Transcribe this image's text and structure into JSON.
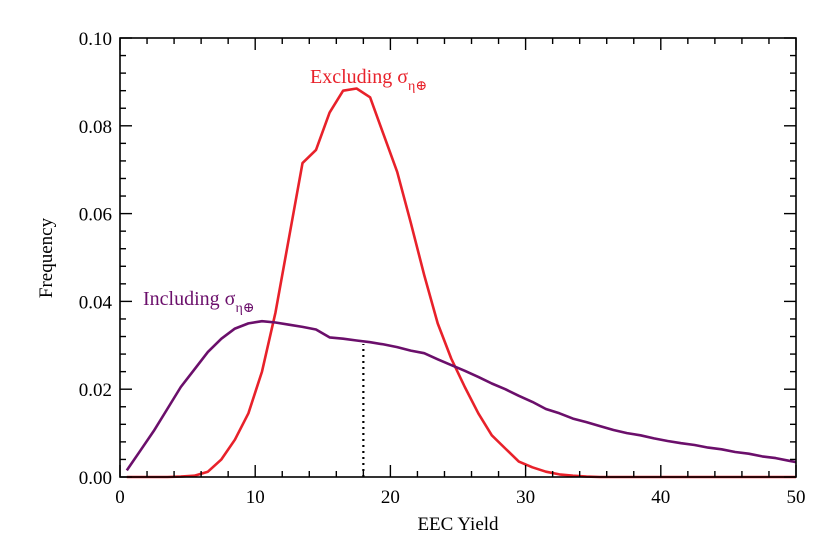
{
  "chart_data": {
    "type": "line",
    "xlabel": "EEC Yield",
    "ylabel": "Frequency",
    "xlim": [
      0,
      50
    ],
    "ylim": [
      0,
      0.1
    ],
    "x_ticks": [
      "0",
      "10",
      "20",
      "30",
      "40",
      "50"
    ],
    "y_ticks": [
      "0.00",
      "0.02",
      "0.04",
      "0.06",
      "0.08",
      "0.10"
    ],
    "grid": false,
    "colors": {
      "excluding": "#e8212a",
      "including": "#6b0f6b",
      "median_marker": "#000000"
    },
    "series": [
      {
        "name": "Excluding σ",
        "name_subscript": "η⊕",
        "color": "#e8212a",
        "x": [
          0.5,
          1.5,
          2.5,
          3.5,
          4.5,
          5.5,
          6.5,
          7.5,
          8.5,
          9.5,
          10.5,
          11.5,
          12.5,
          13.5,
          14.5,
          15.5,
          16.5,
          17.5,
          18.5,
          19.5,
          20.5,
          21.5,
          22.5,
          23.5,
          24.5,
          25.5,
          26.5,
          27.5,
          28.5,
          29.5,
          30.5,
          31.5,
          32.5,
          33.5,
          34.5,
          35.5,
          36.5,
          37.5,
          38.5,
          39.5,
          40.5,
          41.5,
          42.5,
          43.5,
          44.5,
          45.5,
          46.5,
          47.5,
          48.5,
          49.5,
          50
        ],
        "values": [
          0.0,
          0.0,
          0.0,
          0.0,
          0.0001,
          0.0003,
          0.0012,
          0.004,
          0.0085,
          0.0145,
          0.024,
          0.0375,
          0.0545,
          0.0715,
          0.0745,
          0.083,
          0.088,
          0.0885,
          0.0865,
          0.078,
          0.0695,
          0.058,
          0.046,
          0.035,
          0.027,
          0.0205,
          0.0145,
          0.0095,
          0.0065,
          0.0035,
          0.0022,
          0.0012,
          0.0006,
          0.0003,
          0.0001,
          0.0,
          0.0,
          0.0,
          0.0,
          0.0,
          0.0,
          0.0,
          0.0,
          0.0,
          0.0,
          0.0,
          0.0,
          0.0,
          0.0,
          0.0,
          0.0
        ]
      },
      {
        "name": "Including σ",
        "name_subscript": "η⊕",
        "color": "#6b0f6b",
        "x": [
          0.5,
          1.5,
          2.5,
          3.5,
          4.5,
          5.5,
          6.5,
          7.5,
          8.5,
          9.5,
          10.5,
          11.5,
          12.5,
          13.5,
          14.5,
          15.5,
          16.5,
          17.5,
          18.5,
          19.5,
          20.5,
          21.5,
          22.5,
          23.5,
          24.5,
          25.5,
          26.5,
          27.5,
          28.5,
          29.5,
          30.5,
          31.5,
          32.5,
          33.5,
          34.5,
          35.5,
          36.5,
          37.5,
          38.5,
          39.5,
          40.5,
          41.5,
          42.5,
          43.5,
          44.5,
          45.5,
          46.5,
          47.5,
          48.5,
          49.5,
          50
        ],
        "values": [
          0.0015,
          0.006,
          0.0105,
          0.0155,
          0.0205,
          0.0245,
          0.0285,
          0.0315,
          0.0338,
          0.035,
          0.0355,
          0.0352,
          0.0347,
          0.0342,
          0.0336,
          0.0318,
          0.0315,
          0.0311,
          0.0307,
          0.0302,
          0.0296,
          0.0288,
          0.0282,
          0.0268,
          0.0255,
          0.0242,
          0.0228,
          0.0213,
          0.02,
          0.0185,
          0.0171,
          0.0155,
          0.0145,
          0.0133,
          0.0125,
          0.0116,
          0.0107,
          0.01,
          0.0095,
          0.0088,
          0.0082,
          0.0077,
          0.0073,
          0.0067,
          0.0063,
          0.0057,
          0.0053,
          0.0047,
          0.0043,
          0.0037,
          0.0034
        ]
      }
    ],
    "annotations": [
      {
        "type": "vertical_dotted_line",
        "x": 18.0,
        "y_from": 0.0,
        "y_to": 0.0303,
        "color": "#000000"
      }
    ]
  }
}
